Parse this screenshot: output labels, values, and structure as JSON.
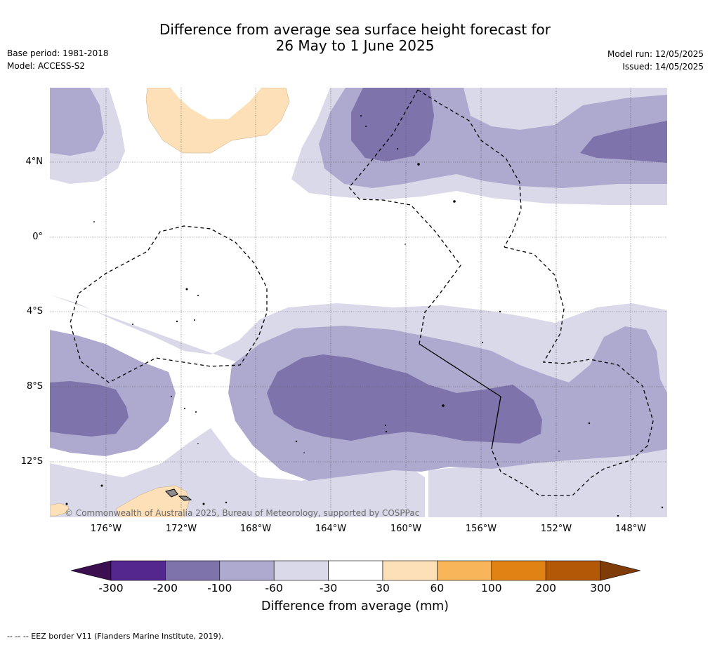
{
  "title": {
    "line1": "Difference from average sea surface height forecast for",
    "line2": "26 May to 1 June 2025"
  },
  "meta": {
    "base_period": "Base period: 1981-2018",
    "model": "Model: ACCESS-S2",
    "model_run": "Model run: 12/05/2025",
    "issued": "Issued: 14/05/2025"
  },
  "map": {
    "lat_labels": [
      "4°N",
      "0°",
      "4°S",
      "8°S",
      "12°S"
    ],
    "lon_labels": [
      "176°W",
      "172°W",
      "168°W",
      "164°W",
      "160°W",
      "156°W",
      "152°W",
      "148°W"
    ],
    "copyright": "© Commonwealth of Australia 2025, Bureau of Meteorology, supported by COSPPac",
    "colors": {
      "below_100": "#7f73ab",
      "below_60": "#aea9ce",
      "below_30": "#d9d9e9",
      "neutral": "#ffffff",
      "above_30": "#fde0b8",
      "land": "#8c8c8c"
    }
  },
  "colorbar": {
    "ticks": [
      "-300",
      "-200",
      "-100",
      "-60",
      "-30",
      "30",
      "60",
      "100",
      "200",
      "300"
    ],
    "colors": [
      "#3b0f50",
      "#54278f",
      "#7f73ab",
      "#aea9ce",
      "#d9d9e9",
      "#ffffff",
      "#fde0b8",
      "#f9b55a",
      "#e08214",
      "#b35806",
      "#7f3b08"
    ],
    "label": "Difference from average (mm)"
  },
  "footnote": "--  --  -- EEZ border V11 (Flanders Marine Institute, 2019)."
}
